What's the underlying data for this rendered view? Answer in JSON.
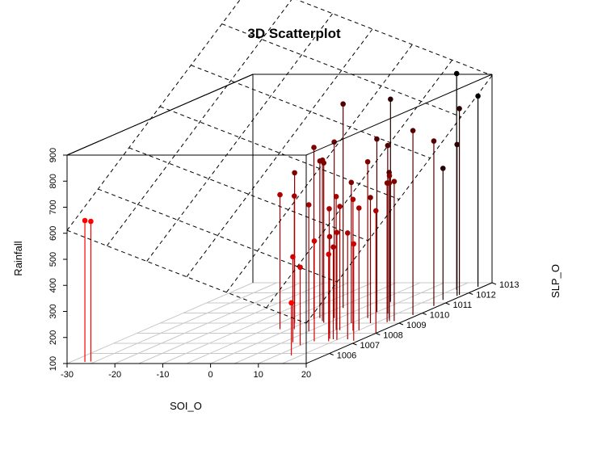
{
  "chart_data": {
    "type": "scatter3d",
    "title": "3D Scatterplot",
    "xlabel": "SOI_O",
    "ylabel": "SLP_O",
    "zlabel": "Rainfall",
    "xlim": [
      -30,
      20
    ],
    "ylim": [
      1005,
      1013
    ],
    "zlim": [
      100,
      900
    ],
    "x_ticks": [
      -30,
      -20,
      -10,
      0,
      10,
      20
    ],
    "y_ticks": [
      1006,
      1007,
      1008,
      1009,
      1010,
      1011,
      1012,
      1013
    ],
    "z_ticks": [
      100,
      200,
      300,
      400,
      500,
      600,
      700,
      800,
      900
    ],
    "grid": "on",
    "regression_plane": "on",
    "point_colors": [
      "#000000",
      "#2a0000",
      "#550000",
      "#800000",
      "#aa0000",
      "#d40000",
      "#ff0000"
    ],
    "points": [
      {
        "x": -27,
        "y": 1005.15,
        "z": 643
      },
      {
        "x": -26,
        "y": 1005.2,
        "z": 638
      },
      {
        "x": 0,
        "y": 1009.45,
        "z": 757
      },
      {
        "x": 3,
        "y": 1009.2,
        "z": 718
      },
      {
        "x": -2,
        "y": 1009.03,
        "z": 676
      },
      {
        "x": 1,
        "y": 1009.5,
        "z": 703
      },
      {
        "x": 4,
        "y": 1009.05,
        "z": 713
      },
      {
        "x": 1,
        "y": 1010.5,
        "z": 883
      },
      {
        "x": 8,
        "y": 1011.1,
        "z": 878
      },
      {
        "x": 16,
        "y": 1012.3,
        "z": 930
      },
      {
        "x": 10,
        "y": 1010.1,
        "z": 764
      },
      {
        "x": 11,
        "y": 1009.5,
        "z": 700
      },
      {
        "x": 13,
        "y": 1009.95,
        "z": 745
      },
      {
        "x": -2,
        "y": 1008.4,
        "z": 616
      },
      {
        "x": 1,
        "y": 1008.4,
        "z": 611
      },
      {
        "x": 5,
        "y": 1008.2,
        "z": 585
      },
      {
        "x": 10,
        "y": 1008.35,
        "z": 611
      },
      {
        "x": 10,
        "y": 1008.05,
        "z": 576
      },
      {
        "x": 14,
        "y": 1008.25,
        "z": 604
      },
      {
        "x": 17,
        "y": 1009.2,
        "z": 658
      },
      {
        "x": 11,
        "y": 1007.2,
        "z": 485
      },
      {
        "x": 15,
        "y": 1008.3,
        "z": 569
      },
      {
        "x": 18,
        "y": 1009.2,
        "z": 636
      },
      {
        "x": 17,
        "y": 1009.1,
        "z": 634
      },
      {
        "x": 10,
        "y": 1009.0,
        "z": 640
      },
      {
        "x": 11,
        "y": 1008.3,
        "z": 575
      },
      {
        "x": 7,
        "y": 1007.1,
        "z": 428
      },
      {
        "x": 10,
        "y": 1006.8,
        "z": 400
      },
      {
        "x": 13,
        "y": 1007.45,
        "z": 492
      },
      {
        "x": 14,
        "y": 1007.4,
        "z": 454
      },
      {
        "x": 14,
        "y": 1007.2,
        "z": 434
      },
      {
        "x": 15,
        "y": 1007.35,
        "z": 512
      },
      {
        "x": 17,
        "y": 1007.4,
        "z": 508
      },
      {
        "x": 19,
        "y": 1007.25,
        "z": 472
      },
      {
        "x": 20,
        "y": 1008.0,
        "z": 570
      },
      {
        "x": 13,
        "y": 1005.8,
        "z": 302
      },
      {
        "x": 19,
        "y": 1009.8,
        "z": 808
      },
      {
        "x": 19,
        "y": 1010.7,
        "z": 733
      },
      {
        "x": 19,
        "y": 1011.8,
        "z": 815
      },
      {
        "x": 19,
        "y": 1011.7,
        "z": 681
      },
      {
        "x": 19,
        "y": 1012.6,
        "z": 832
      },
      {
        "x": 18,
        "y": 1011.3,
        "z": 605
      },
      {
        "x": 15,
        "y": 1009.6,
        "z": 655
      },
      {
        "x": 14,
        "y": 1009.0,
        "z": 582
      },
      {
        "x": 16,
        "y": 1009.4,
        "z": 622
      },
      {
        "x": 4,
        "y": 1009.5,
        "z": 776
      }
    ]
  }
}
